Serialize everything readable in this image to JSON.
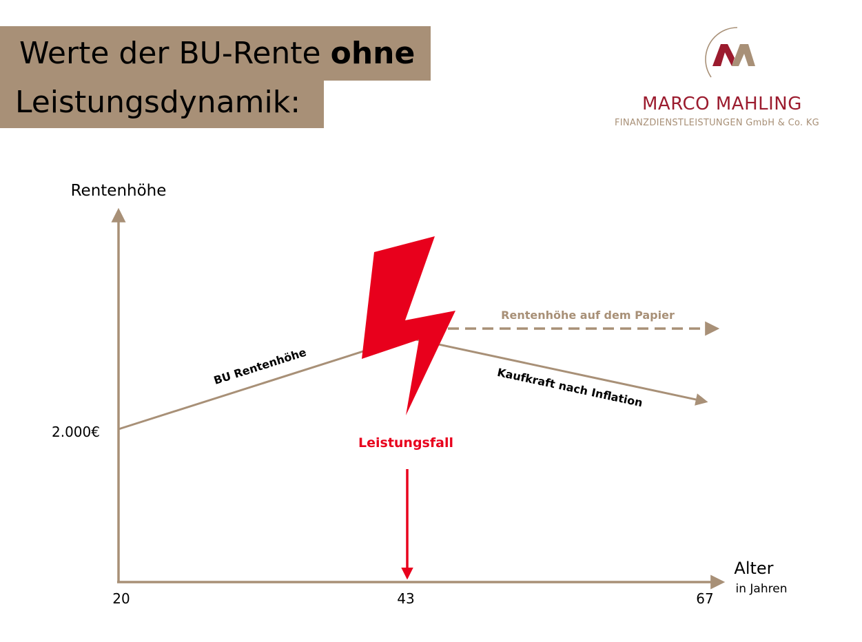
{
  "title": {
    "line1_prefix": "Werte der BU-Rente ",
    "line1_bold": "ohne",
    "line2": "Leistungsdynamik:"
  },
  "logo": {
    "name": "MARCO MAHLING",
    "subtitle": "FINANZDIENSTLEISTUNGEN GmbH & Co. KG"
  },
  "diagram": {
    "y_axis_label": "Rentenhöhe",
    "x_axis_label": "Alter",
    "x_axis_unit": "in Jahren",
    "x_ticks": [
      "20",
      "43",
      "67"
    ],
    "start_value_label": "2.000€",
    "line_label_growth": "BU Rentenhöhe",
    "line_label_paper": "Rentenhöhe auf dem Papier",
    "line_label_inflation": "Kaufkraft nach Inflation",
    "event_label": "Leistungsfall"
  },
  "colors": {
    "brand_taupe": "#a89077",
    "alert_red": "#e8001c",
    "logo_red": "#9b1b2e"
  }
}
